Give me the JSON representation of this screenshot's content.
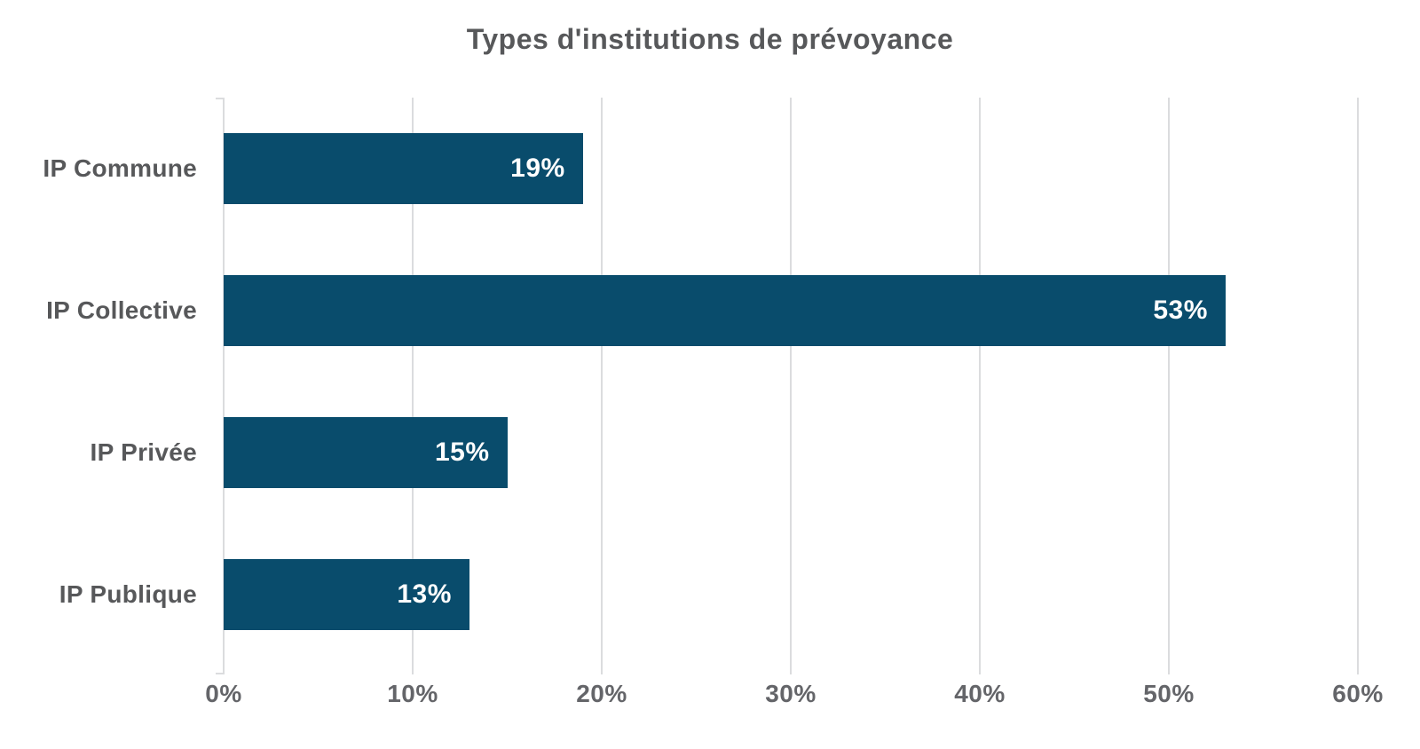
{
  "chart_data": {
    "type": "bar",
    "orientation": "horizontal",
    "title": "Types d'institutions de prévoyance",
    "categories": [
      "IP Commune",
      "IP Collective",
      "IP Privée",
      "IP Publique"
    ],
    "values": [
      19,
      53,
      15,
      13
    ],
    "value_labels": [
      "19%",
      "53%",
      "15%",
      "13%"
    ],
    "x_ticks": [
      "0%",
      "10%",
      "20%",
      "30%",
      "40%",
      "50%",
      "60%"
    ],
    "xlim": [
      0,
      60
    ],
    "xlabel": "",
    "ylabel": "",
    "grid": "vertical",
    "legend": "none",
    "colors": {
      "bar": "#094C6C",
      "value_label": "#FFFFFF",
      "title_and_category": "#57585A",
      "axis_tick_label": "#646569",
      "gridline": "#DBDCDE",
      "background": "#FFFFFF"
    }
  }
}
